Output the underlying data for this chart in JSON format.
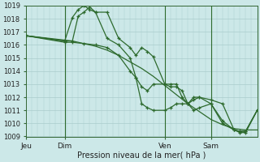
{
  "bg_color": "#cce8e8",
  "grid_color": "#aacccc",
  "line_color": "#2d6a2d",
  "ylim": [
    1009,
    1019
  ],
  "ylabel_ticks": [
    1009,
    1010,
    1011,
    1012,
    1013,
    1014,
    1015,
    1016,
    1017,
    1018,
    1019
  ],
  "xlabel": "Pression niveau de la mer( hPa )",
  "day_labels": [
    "Jeu",
    "Dim",
    "Ven",
    "Sam"
  ],
  "day_positions": [
    0,
    20,
    72,
    96
  ],
  "vline_positions": [
    20,
    72,
    96
  ],
  "total_hours": 120,
  "series": [
    {
      "x": [
        0,
        6,
        12,
        18,
        24,
        30,
        36,
        42,
        48,
        54,
        60,
        66,
        72,
        78,
        84,
        90,
        96,
        102,
        108,
        114,
        120
      ],
      "y": [
        1016.7,
        1016.6,
        1016.5,
        1016.4,
        1016.3,
        1016.1,
        1015.9,
        1015.6,
        1015.2,
        1014.7,
        1014.2,
        1013.6,
        1012.9,
        1012.2,
        1011.5,
        1010.9,
        1010.3,
        1009.9,
        1009.6,
        1009.5,
        1009.5
      ],
      "marker": false
    },
    {
      "x": [
        0,
        20,
        24,
        27,
        30,
        33,
        36,
        42,
        48,
        54,
        57,
        60,
        63,
        66,
        72,
        75,
        78,
        81,
        84,
        87,
        90,
        96,
        102,
        108,
        111,
        114,
        120
      ],
      "y": [
        1016.7,
        1016.3,
        1018.1,
        1018.7,
        1019.0,
        1018.7,
        1018.5,
        1018.5,
        1016.5,
        1015.8,
        1015.2,
        1015.8,
        1015.5,
        1015.1,
        1013.0,
        1012.8,
        1012.8,
        1012.5,
        1011.5,
        1011.0,
        1011.2,
        1011.5,
        1010.2,
        1009.5,
        1009.4,
        1009.4,
        1011.0
      ],
      "marker": true
    },
    {
      "x": [
        0,
        20,
        24,
        27,
        30,
        33,
        36,
        42,
        48,
        54,
        57,
        60,
        63,
        66,
        72,
        75,
        78,
        81,
        84,
        87,
        90,
        96,
        102,
        108,
        111,
        114,
        120
      ],
      "y": [
        1016.7,
        1016.3,
        1016.3,
        1018.2,
        1018.5,
        1018.9,
        1018.5,
        1016.5,
        1016.0,
        1015.0,
        1013.5,
        1011.5,
        1011.2,
        1011.0,
        1011.0,
        1011.2,
        1011.5,
        1011.5,
        1011.5,
        1011.8,
        1012.0,
        1011.5,
        1010.0,
        1009.5,
        1009.4,
        1009.4,
        1011.0
      ],
      "marker": true
    },
    {
      "x": [
        0,
        20,
        24,
        30,
        36,
        42,
        48,
        54,
        57,
        60,
        63,
        66,
        72,
        75,
        78,
        81,
        84,
        87,
        90,
        96,
        102,
        108,
        111,
        114,
        120
      ],
      "y": [
        1016.7,
        1016.2,
        1016.2,
        1016.1,
        1016.0,
        1015.8,
        1015.2,
        1014.0,
        1013.5,
        1012.8,
        1012.5,
        1013.0,
        1013.0,
        1013.0,
        1013.0,
        1012.0,
        1011.5,
        1012.0,
        1012.0,
        1011.8,
        1011.5,
        1009.5,
        1009.3,
        1009.3,
        1011.0
      ],
      "marker": true
    }
  ]
}
